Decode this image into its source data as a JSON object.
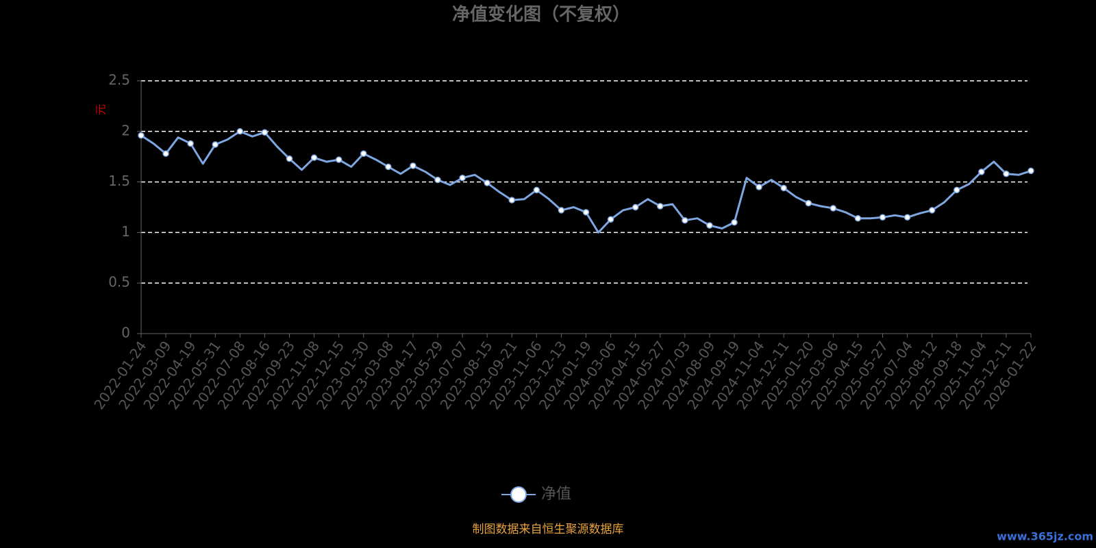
{
  "chart_data": {
    "type": "line",
    "title": "净值变化图（不复权）",
    "y_label": "元",
    "categories": [
      "2022-01-24",
      null,
      "2022-03-09",
      null,
      "2022-04-19",
      null,
      "2022-05-31",
      null,
      "2022-07-08",
      null,
      "2022-08-16",
      null,
      "2022-09-23",
      null,
      "2022-11-08",
      null,
      "2022-12-15",
      null,
      "2023-01-30",
      null,
      "2023-03-08",
      null,
      "2023-04-17",
      null,
      "2023-05-29",
      null,
      "2023-07-07",
      null,
      "2023-08-15",
      null,
      "2023-09-21",
      null,
      "2023-11-06",
      null,
      "2023-12-13",
      null,
      "2024-01-19",
      null,
      "2024-03-06",
      null,
      "2024-04-15",
      null,
      "2024-05-27",
      null,
      "2024-07-03",
      null,
      "2024-08-09",
      null,
      "2024-09-19",
      null,
      "2024-11-04",
      null,
      "2024-12-11",
      null,
      "2025-01-20",
      null,
      "2025-03-06",
      null,
      "2025-04-15",
      null,
      "2025-05-27",
      null,
      "2025-07-04",
      null,
      "2025-08-12",
      null,
      "2025-09-18",
      null,
      "2025-11-04",
      null,
      "2025-12-11",
      null,
      "2026-01-22"
    ],
    "series": [
      {
        "name": "净值",
        "color": "#7ea6e0",
        "values": [
          1.96,
          1.88,
          1.78,
          1.94,
          1.88,
          1.68,
          1.87,
          1.92,
          2.0,
          1.95,
          1.99,
          1.85,
          1.73,
          1.62,
          1.74,
          1.7,
          1.72,
          1.65,
          1.78,
          1.72,
          1.65,
          1.58,
          1.66,
          1.6,
          1.52,
          1.47,
          1.54,
          1.57,
          1.49,
          1.4,
          1.32,
          1.33,
          1.42,
          1.33,
          1.22,
          1.25,
          1.2,
          1.0,
          1.13,
          1.22,
          1.25,
          1.33,
          1.26,
          1.28,
          1.12,
          1.14,
          1.07,
          1.04,
          1.1,
          1.54,
          1.45,
          1.52,
          1.44,
          1.35,
          1.29,
          1.26,
          1.24,
          1.2,
          1.14,
          1.14,
          1.15,
          1.17,
          1.15,
          1.19,
          1.22,
          1.3,
          1.42,
          1.48,
          1.6,
          1.7,
          1.58,
          1.57,
          1.61
        ]
      }
    ],
    "ylim": [
      0,
      2.5
    ],
    "yticks": [
      0,
      0.5,
      1,
      1.5,
      2,
      2.5
    ],
    "grid": true,
    "legend": "bottom",
    "source": "制图数据来自恒生聚源数据库",
    "watermark": "www.365jz.com"
  }
}
